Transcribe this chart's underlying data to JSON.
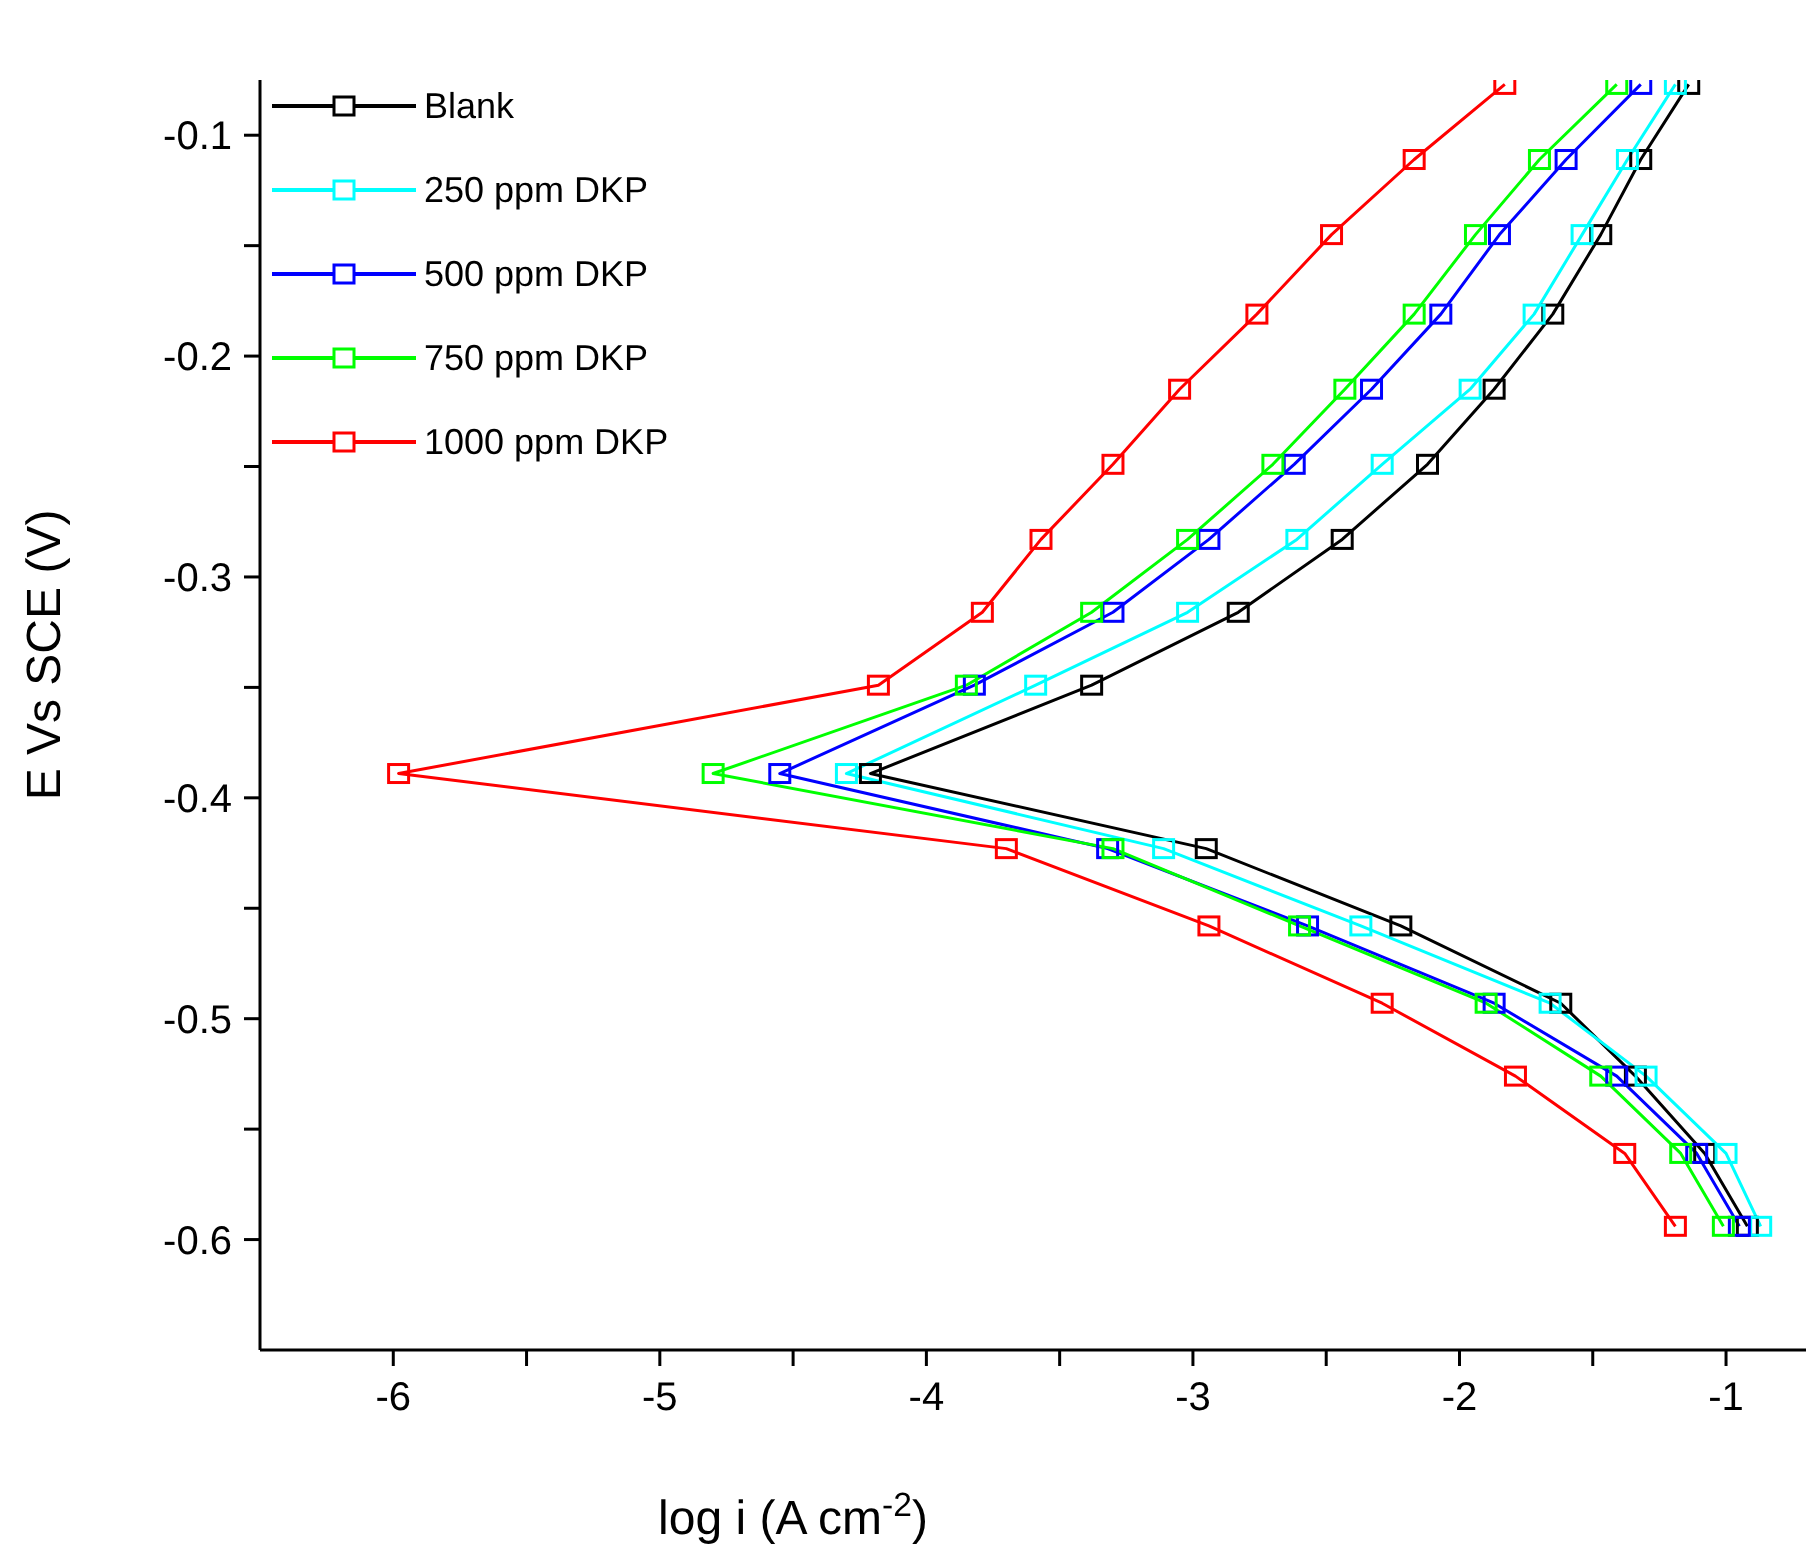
{
  "chart_data": {
    "type": "line",
    "xlabel": "log i (A cm$^{-2}$)",
    "ylabel": "E Vs SCE (V)",
    "xlim": [
      -6.5,
      -0.7
    ],
    "ylim": [
      -0.65,
      -0.075
    ],
    "xticks": [
      -6,
      {
        "value": -5.5,
        "label": null
      },
      -5,
      {
        "value": -4.5,
        "label": null
      },
      -4,
      {
        "value": -3.5,
        "label": null
      },
      -3,
      {
        "value": -2.5,
        "label": null
      },
      -2,
      {
        "value": -1.5,
        "label": null
      },
      -1
    ],
    "yticks": [
      -0.1,
      {
        "value": -0.15,
        "label": null
      },
      -0.2,
      {
        "value": -0.25,
        "label": null
      },
      -0.3,
      {
        "value": -0.35,
        "label": null
      },
      -0.4,
      {
        "value": -0.45,
        "label": null
      },
      -0.5,
      {
        "value": -0.55,
        "label": null
      },
      -0.6
    ],
    "grid": false,
    "legend": "top left",
    "marker": "square",
    "line_style": "solid",
    "series": [
      {
        "name": "Blank",
        "color": "#000000",
        "x": [
          -1.14,
          -1.32,
          -1.47,
          -1.65,
          -1.87,
          -2.12,
          -2.44,
          -2.83,
          -3.38,
          -4.21,
          -2.95,
          -2.22,
          -1.62,
          -1.34,
          -1.08,
          -0.92
        ],
        "values": [
          -0.077,
          -0.111,
          -0.145,
          -0.181,
          -0.215,
          -0.249,
          -0.283,
          -0.316,
          -0.349,
          -0.389,
          -0.423,
          -0.458,
          -0.493,
          -0.526,
          -0.561,
          -0.594
        ]
      },
      {
        "name": "250 ppm DKP",
        "color": "#00ffff",
        "x": [
          -1.19,
          -1.37,
          -1.54,
          -1.72,
          -1.96,
          -2.29,
          -2.61,
          -3.02,
          -3.59,
          -4.3,
          -3.11,
          -2.37,
          -1.66,
          -1.3,
          -1.0,
          -0.87
        ],
        "values": [
          -0.077,
          -0.111,
          -0.145,
          -0.181,
          -0.215,
          -0.249,
          -0.283,
          -0.316,
          -0.349,
          -0.389,
          -0.423,
          -0.458,
          -0.493,
          -0.526,
          -0.561,
          -0.594
        ]
      },
      {
        "name": "500 ppm DKP",
        "color": "#0000ff",
        "x": [
          -1.32,
          -1.6,
          -1.85,
          -2.07,
          -2.33,
          -2.62,
          -2.94,
          -3.3,
          -3.82,
          -4.55,
          -3.32,
          -2.57,
          -1.87,
          -1.41,
          -1.11,
          -0.95
        ],
        "values": [
          -0.077,
          -0.111,
          -0.145,
          -0.181,
          -0.215,
          -0.249,
          -0.283,
          -0.316,
          -0.349,
          -0.389,
          -0.423,
          -0.458,
          -0.493,
          -0.526,
          -0.561,
          -0.594
        ]
      },
      {
        "name": "750 ppm DKP",
        "color": "#00ff00",
        "x": [
          -1.41,
          -1.7,
          -1.94,
          -2.17,
          -2.43,
          -2.7,
          -3.02,
          -3.38,
          -3.85,
          -4.8,
          -3.3,
          -2.6,
          -1.9,
          -1.47,
          -1.17,
          -1.01
        ],
        "values": [
          -0.077,
          -0.111,
          -0.145,
          -0.181,
          -0.215,
          -0.249,
          -0.283,
          -0.316,
          -0.349,
          -0.389,
          -0.423,
          -0.458,
          -0.493,
          -0.526,
          -0.561,
          -0.594
        ]
      },
      {
        "name": "1000 ppm DKP",
        "color": "#ff0000",
        "x": [
          -1.83,
          -2.17,
          -2.48,
          -2.76,
          -3.05,
          -3.3,
          -3.57,
          -3.79,
          -4.18,
          -5.98,
          -3.7,
          -2.94,
          -2.29,
          -1.79,
          -1.38,
          -1.19
        ],
        "values": [
          -0.077,
          -0.111,
          -0.145,
          -0.181,
          -0.215,
          -0.249,
          -0.283,
          -0.316,
          -0.349,
          -0.389,
          -0.423,
          -0.458,
          -0.493,
          -0.526,
          -0.561,
          -0.594
        ]
      }
    ]
  }
}
